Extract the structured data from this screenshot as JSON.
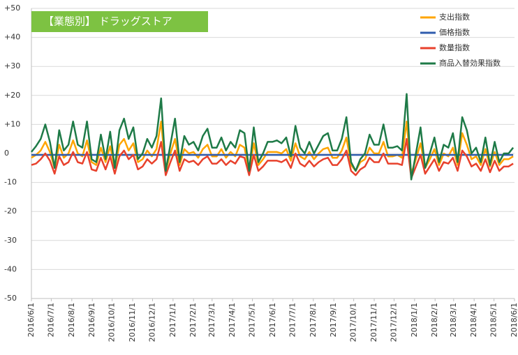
{
  "chart_data": {
    "type": "line",
    "title": "【業態別】 ドラッグストア",
    "x": [
      "2016/6/1",
      "2016/6/8",
      "2016/6/15",
      "2016/6/22",
      "2016/6/29",
      "2016/7/6",
      "2016/7/13",
      "2016/7/20",
      "2016/7/27",
      "2016/8/3",
      "2016/8/10",
      "2016/8/17",
      "2016/8/24",
      "2016/8/31",
      "2016/9/7",
      "2016/9/14",
      "2016/9/21",
      "2016/9/28",
      "2016/10/5",
      "2016/10/12",
      "2016/10/19",
      "2016/10/26",
      "2016/11/2",
      "2016/11/9",
      "2016/11/16",
      "2016/11/23",
      "2016/11/30",
      "2016/12/7",
      "2016/12/14",
      "2016/12/21",
      "2016/12/28",
      "2017/1/4",
      "2017/1/11",
      "2017/1/18",
      "2017/1/25",
      "2017/2/1",
      "2017/2/8",
      "2017/2/15",
      "2017/2/22",
      "2017/3/1",
      "2017/3/8",
      "2017/3/15",
      "2017/3/22",
      "2017/3/29",
      "2017/4/5",
      "2017/4/12",
      "2017/4/19",
      "2017/4/26",
      "2017/5/3",
      "2017/5/10",
      "2017/5/17",
      "2017/5/24",
      "2017/5/31",
      "2017/6/7",
      "2017/6/14",
      "2017/6/21",
      "2017/6/28",
      "2017/7/5",
      "2017/7/12",
      "2017/7/19",
      "2017/7/26",
      "2017/8/2",
      "2017/8/9",
      "2017/8/16",
      "2017/8/23",
      "2017/8/30",
      "2017/9/6",
      "2017/9/13",
      "2017/9/20",
      "2017/9/27",
      "2017/10/4",
      "2017/10/11",
      "2017/10/18",
      "2017/10/25",
      "2017/11/1",
      "2017/11/8",
      "2017/11/15",
      "2017/11/22",
      "2017/11/29",
      "2017/12/6",
      "2017/12/13",
      "2017/12/20",
      "2017/12/27",
      "2018/1/3",
      "2018/1/10",
      "2018/1/17",
      "2018/1/24",
      "2018/1/31",
      "2018/2/7",
      "2018/2/14",
      "2018/2/21",
      "2018/2/28",
      "2018/3/7",
      "2018/3/14",
      "2018/3/21",
      "2018/3/28",
      "2018/4/4",
      "2018/4/11",
      "2018/4/18",
      "2018/4/25",
      "2018/5/2",
      "2018/5/9",
      "2018/5/16",
      "2018/5/23",
      "2018/5/30"
    ],
    "series": [
      {
        "name": "支出指数",
        "color": "#ffa500",
        "values": [
          -1.5,
          -0.5,
          1,
          4,
          0.5,
          -5,
          3,
          -1.5,
          0,
          4.5,
          0,
          -1,
          4.5,
          -3,
          -4,
          2,
          -3,
          2.5,
          -5,
          3,
          5,
          1,
          3.5,
          -3,
          -2,
          1,
          -1,
          1.5,
          11,
          -6,
          0,
          5,
          -4,
          1.5,
          0,
          0.5,
          -1.5,
          1.5,
          3,
          -1,
          -1,
          1.5,
          -1.5,
          0.5,
          -1,
          3,
          2,
          -6,
          3.5,
          -4,
          -2,
          0.5,
          0.5,
          0.5,
          0,
          1.5,
          -2.5,
          3.5,
          -1,
          -2,
          0.5,
          -2,
          0,
          1.5,
          2,
          -1.5,
          -1.5,
          1,
          5.5,
          -4,
          -6,
          -3,
          -2,
          2,
          0,
          0,
          4,
          -1,
          -1,
          -0.5,
          -1.5,
          11,
          -7,
          -2,
          3.5,
          -5,
          -2,
          1.5,
          -4,
          0,
          -1,
          2,
          -4,
          7,
          3,
          -2,
          -1,
          -4,
          1.5,
          -4.5,
          0.5,
          -4,
          -2,
          -2,
          -1
        ]
      },
      {
        "name": "価格指数",
        "color": "#2f5cad",
        "values": [
          -0.5,
          -0.5,
          -0.5,
          -0.5,
          -0.5,
          -0.5,
          -0.5,
          -0.5,
          -0.5,
          -0.5,
          -0.5,
          -0.5,
          -0.5,
          -0.5,
          -0.5,
          -0.5,
          -0.5,
          -0.5,
          -0.5,
          -0.5,
          -0.5,
          -0.5,
          -0.5,
          -0.5,
          -0.5,
          -0.5,
          -0.5,
          -0.5,
          -0.5,
          -0.5,
          -0.5,
          -0.5,
          -0.5,
          -0.5,
          -0.5,
          -0.5,
          -0.5,
          -0.5,
          -0.5,
          -0.5,
          -0.5,
          -0.5,
          -0.5,
          -0.5,
          -0.5,
          -0.5,
          -0.5,
          -0.5,
          -0.5,
          -0.5,
          -0.5,
          -0.5,
          -0.5,
          -0.5,
          -0.5,
          -0.5,
          -0.5,
          -0.5,
          -0.5,
          -0.5,
          -0.5,
          -0.5,
          -0.5,
          -0.5,
          -0.5,
          -0.5,
          -0.5,
          -0.5,
          -0.5,
          -0.5,
          -0.5,
          -0.5,
          -0.5,
          -0.5,
          -0.5,
          -0.5,
          -0.5,
          -0.5,
          -0.5,
          -0.5,
          -0.5,
          -0.5,
          -0.5,
          -0.5,
          -0.5,
          -0.5,
          -0.5,
          -0.5,
          -0.5,
          -0.5,
          -0.5,
          -0.5,
          -0.5,
          -0.5,
          -0.5,
          -0.5,
          -0.5,
          -0.5,
          -0.5,
          -0.5,
          -0.5,
          -0.5,
          -0.5,
          -0.5,
          -0.5
        ]
      },
      {
        "name": "数量指数",
        "color": "#e8412c",
        "values": [
          -4,
          -3.5,
          -2,
          0,
          -2.5,
          -7,
          -1,
          -4,
          -3,
          0.5,
          -3,
          -3.5,
          0.5,
          -5.5,
          -6,
          -1.5,
          -5.5,
          -1,
          -7,
          -1,
          1,
          -2,
          -0.5,
          -5.5,
          -4.5,
          -2,
          -3.5,
          -2,
          4,
          -7.5,
          -3,
          1,
          -6,
          -2,
          -3,
          -2.5,
          -4,
          -2,
          -1,
          -3.5,
          -3.5,
          -2,
          -4,
          -2.5,
          -3.5,
          -1,
          -1.5,
          -7.5,
          -0.5,
          -6,
          -4.5,
          -2.5,
          -2.5,
          -2.5,
          -3,
          -2,
          -5,
          0,
          -3.5,
          -4.5,
          -2.5,
          -4.5,
          -3,
          -2,
          -1.5,
          -4,
          -4,
          -2,
          1,
          -6,
          -7.5,
          -5.5,
          -4.5,
          -1.5,
          -3,
          -3,
          0,
          -3.5,
          -3.5,
          -3.5,
          -4,
          5,
          -8.5,
          -4.5,
          -0.5,
          -7,
          -4.5,
          -2,
          -6,
          -3,
          -3.5,
          -1.5,
          -6,
          1,
          -1,
          -4.5,
          -3.5,
          -6,
          -2,
          -6.5,
          -2.5,
          -6,
          -4.5,
          -4.5,
          -3.5
        ]
      },
      {
        "name": "商品入替効果指数",
        "color": "#1e7a47",
        "values": [
          0.5,
          2.5,
          5,
          10,
          4,
          -5,
          8,
          1,
          3,
          11,
          3,
          2,
          11,
          -2,
          -3,
          6.5,
          -2,
          7.5,
          -5,
          8,
          12,
          5,
          9,
          -2,
          0,
          5,
          2,
          6,
          19,
          -6,
          3,
          12,
          -3,
          6,
          3,
          4,
          1,
          6,
          8.5,
          2,
          2,
          5.5,
          1,
          4,
          2,
          8,
          7,
          -6,
          9,
          -3,
          0,
          4,
          4,
          4.5,
          3.5,
          5.5,
          -1,
          9.5,
          2,
          0,
          4,
          0,
          3,
          6,
          7,
          1,
          1,
          5,
          12.5,
          -3,
          -6,
          -2,
          0,
          6.5,
          3,
          3,
          10,
          2,
          2,
          2.5,
          1,
          20.5,
          -9,
          0,
          9,
          -5,
          0,
          5.5,
          -3,
          3,
          2,
          7,
          -3,
          12.5,
          8,
          0,
          2,
          -3,
          5.5,
          -4,
          4,
          -3,
          0,
          0,
          2
        ]
      }
    ],
    "xlim": [
      "2016/6/1",
      "2018/6/1"
    ],
    "xticks": [
      "2016/6/1",
      "2016/7/1",
      "2016/8/1",
      "2016/9/1",
      "2016/10/1",
      "2016/11/1",
      "2016/12/1",
      "2017/1/1",
      "2017/2/1",
      "2017/3/1",
      "2017/4/1",
      "2017/5/1",
      "2017/6/1",
      "2017/7/1",
      "2017/8/1",
      "2017/9/1",
      "2017/10/1",
      "2017/11/1",
      "2017/12/1",
      "2018/1/1",
      "2018/2/1",
      "2018/3/1",
      "2018/4/1",
      "2018/5/1",
      "2018/6/1"
    ],
    "ylim": [
      -50,
      50
    ],
    "yticks": [
      {
        "value": 50,
        "label": "+50"
      },
      {
        "value": 40,
        "label": "+40"
      },
      {
        "value": 30,
        "label": "+30"
      },
      {
        "value": 20,
        "label": "+20"
      },
      {
        "value": 10,
        "label": "+10"
      },
      0,
      -10,
      -20,
      -30,
      -40,
      -50
    ],
    "grid": true
  }
}
